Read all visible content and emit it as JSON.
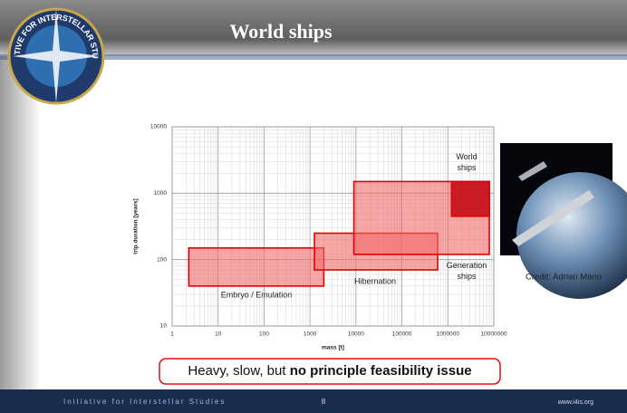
{
  "slide": {
    "title": "World ships",
    "logo_text": "INITIATIVE FOR INTERSTELLAR STUDIES",
    "caption": "Credit: Adrian Mann",
    "callout": {
      "normal": "Heavy, slow, but ",
      "bold": "no principle feasibility issue"
    },
    "footer": {
      "left": "Initiative for Interstellar Studies",
      "page": "8",
      "url": "www.i4is.org"
    }
  },
  "chart_data": {
    "type": "range-box",
    "xlabel": "mass [t]",
    "ylabel": "trip duration [years]",
    "xscale": "log",
    "yscale": "log",
    "grid": true,
    "xlim": [
      1,
      10000000
    ],
    "xticks": [
      1,
      10,
      100,
      1000,
      10000,
      100000,
      1000000,
      10000000
    ],
    "ylim": [
      10,
      10000
    ],
    "yticks": [
      10,
      100,
      1000,
      10000
    ],
    "series": [
      {
        "name": "Embryo / Emulation",
        "color": "#f26b6b",
        "x": [
          2.3,
          2000
        ],
        "y": [
          40,
          150
        ]
      },
      {
        "name": "Hibernation",
        "color": "#f26b6b",
        "x": [
          1250,
          600000
        ],
        "y": [
          70,
          250
        ]
      },
      {
        "name": "Generation ships",
        "color": "#f26b6b",
        "x": [
          9000,
          8000000
        ],
        "y": [
          120,
          1500
        ]
      },
      {
        "name": "World ships",
        "color": "#c8141e",
        "x": [
          1200000,
          8000000
        ],
        "y": [
          450,
          1500
        ]
      }
    ]
  }
}
